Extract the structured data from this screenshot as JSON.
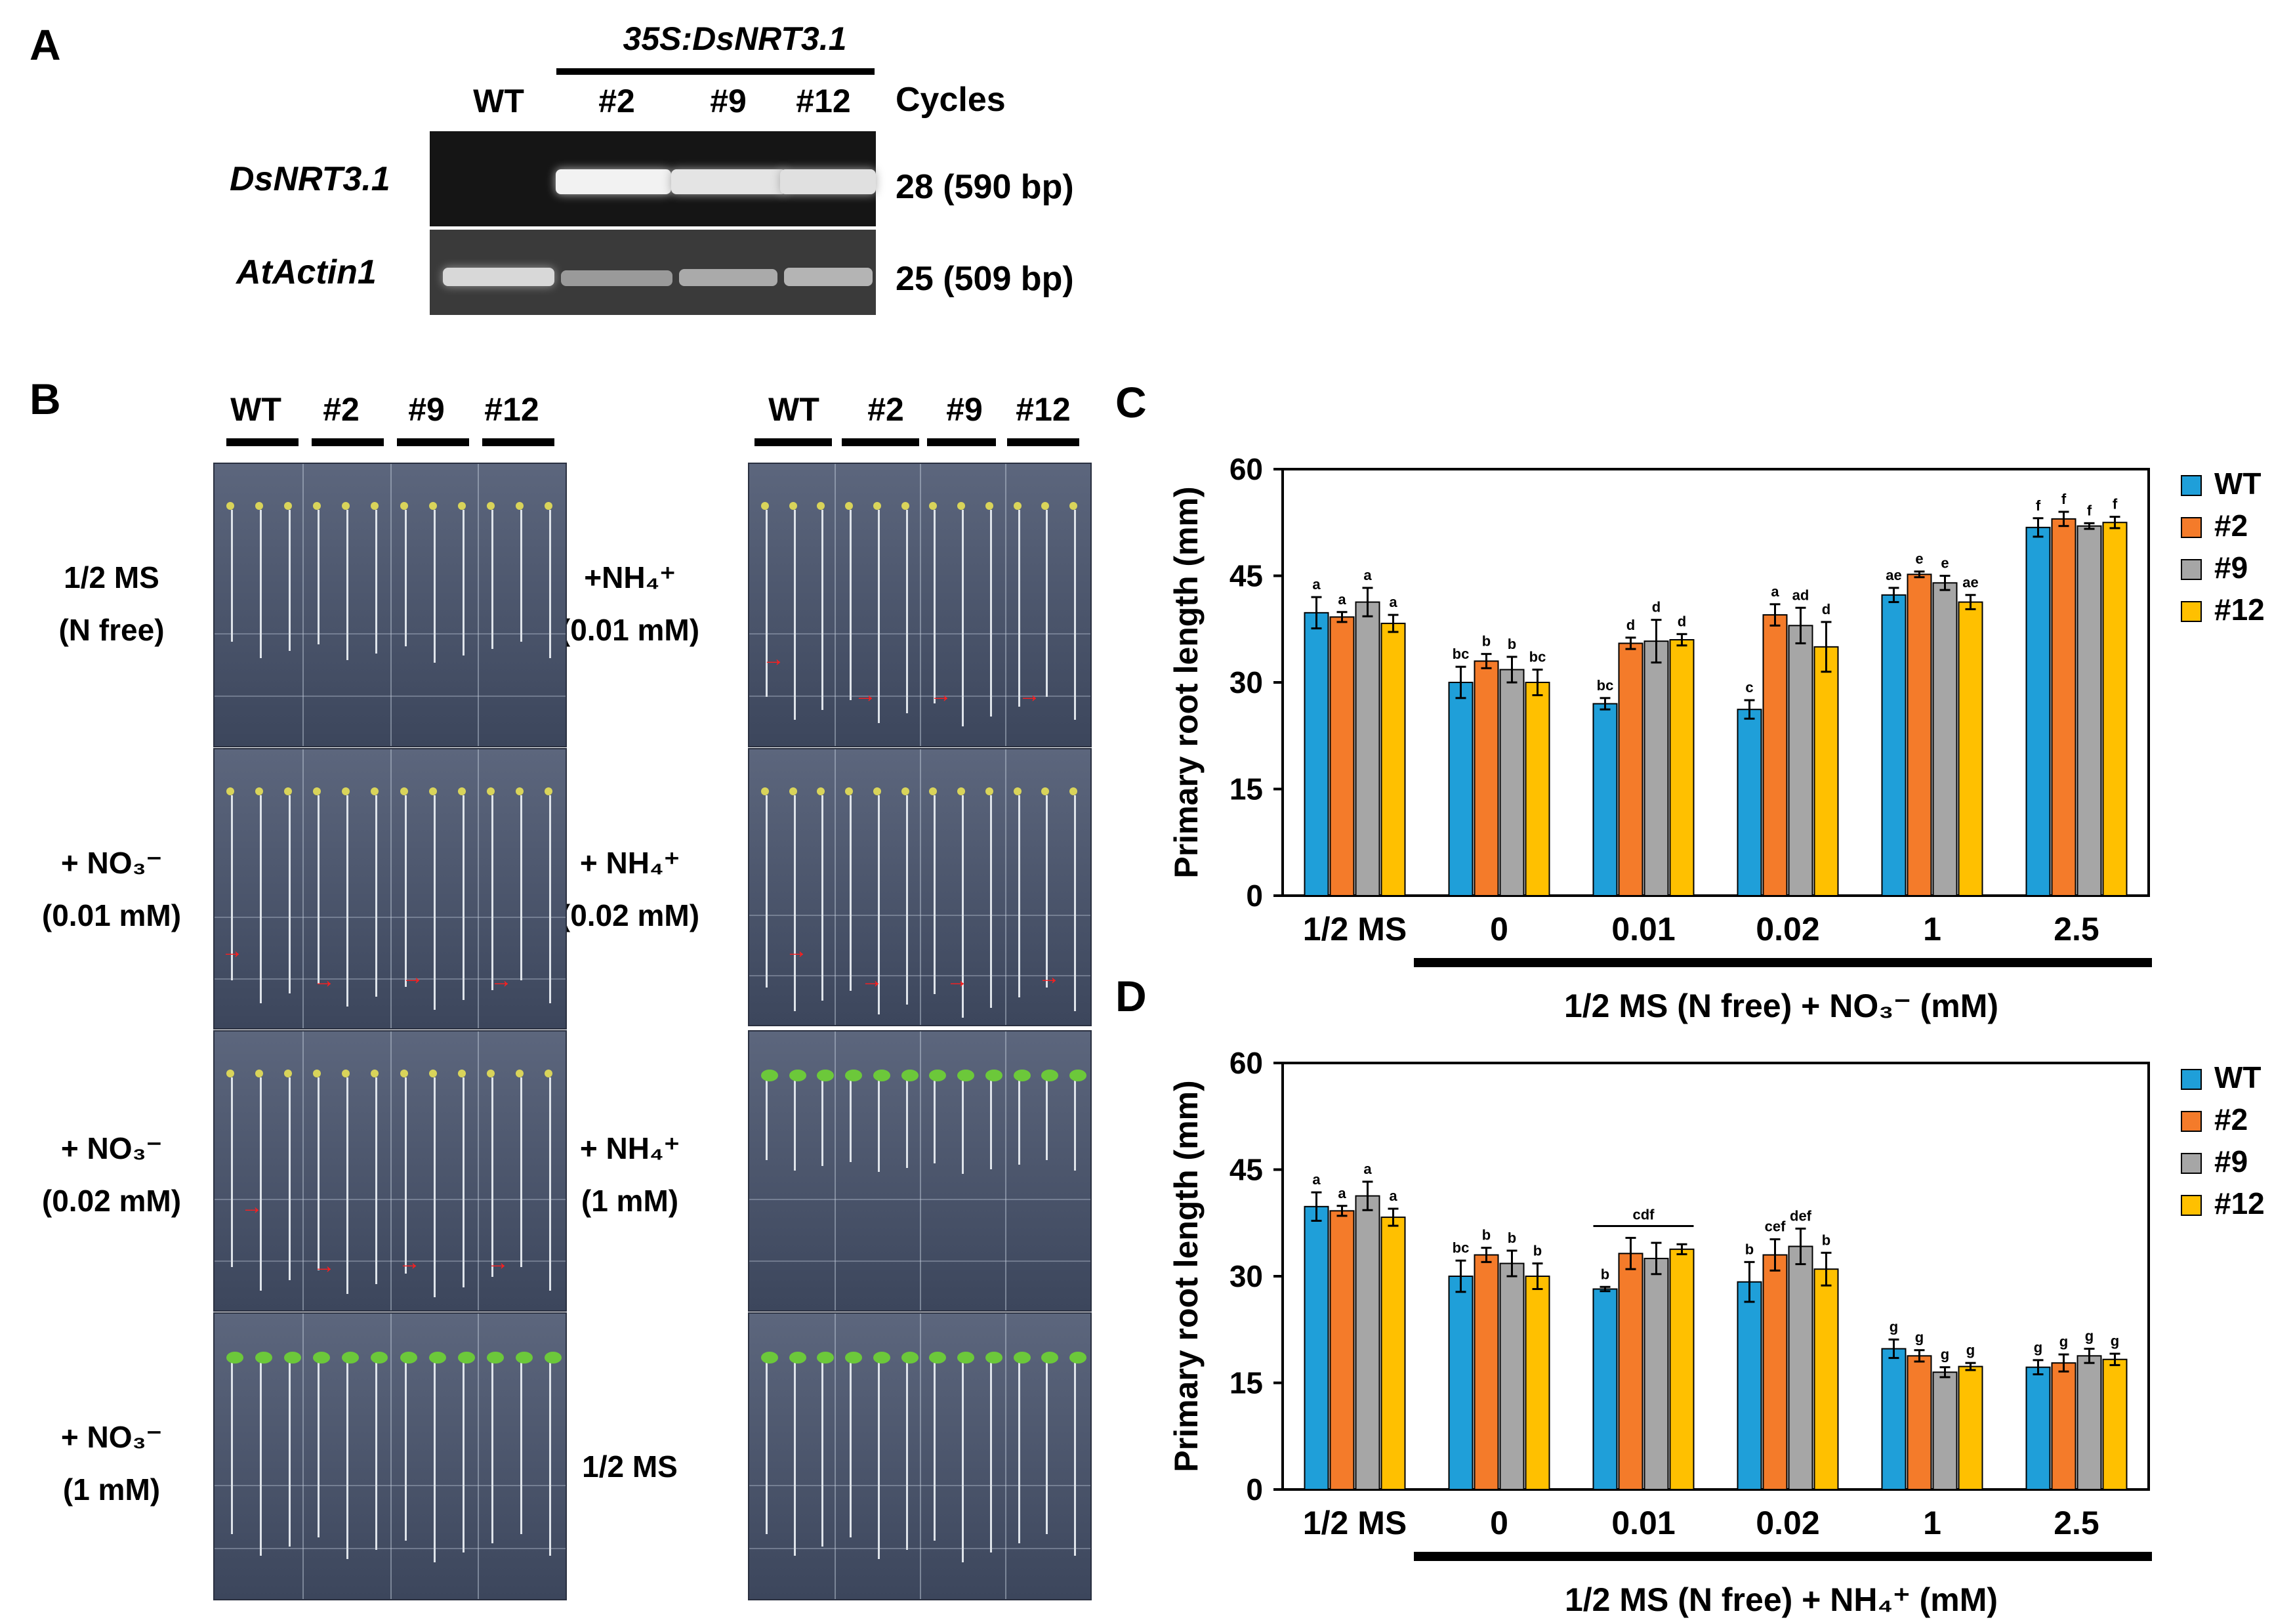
{
  "panels": {
    "a": "A",
    "b": "B",
    "c": "C",
    "d": "D"
  },
  "gel": {
    "construct": "35S:DsNRT3.1",
    "lanes": [
      "WT",
      "#2",
      "#9",
      "#12"
    ],
    "cycles_header": "Cycles",
    "rows": [
      {
        "gene": "DsNRT3.1",
        "cycles": "28 (590 bp)"
      },
      {
        "gene": "AtActin1",
        "cycles": "25 (509 bp)"
      }
    ]
  },
  "seedlings": {
    "lanes": [
      "WT",
      "#2",
      "#9",
      "#12"
    ],
    "left_conditions": [
      {
        "line1": "1/2 MS",
        "line2": "(N free)"
      },
      {
        "line1": "+ NO₃⁻",
        "line2": "(0.01 mM)"
      },
      {
        "line1": "+ NO₃⁻",
        "line2": "(0.02 mM)"
      },
      {
        "line1": "+ NO₃⁻",
        "line2": "(1 mM)"
      }
    ],
    "right_conditions": [
      {
        "line1": "+NH₄⁺",
        "line2": "(0.01 mM)"
      },
      {
        "line1": "+ NH₄⁺",
        "line2": "(0.02 mM)"
      },
      {
        "line1": "+ NH₄⁺",
        "line2": "(1 mM)"
      },
      {
        "line1": "1/2 MS",
        "line2": ""
      }
    ]
  },
  "chart_data": [
    {
      "type": "bar",
      "panel": "C",
      "ylabel": "Primary root length (mm)",
      "ylim": [
        0,
        60
      ],
      "yticks": [
        0,
        15,
        30,
        45,
        60
      ],
      "categories": [
        "1/2 MS",
        "0",
        "0.01",
        "0.02",
        "1",
        "2.5"
      ],
      "xlabel": "1/2 MS (N free) + NO₃⁻ (mM)",
      "legend": [
        "WT",
        "#2",
        "#9",
        "#12"
      ],
      "colors": [
        "#1f9fd9",
        "#f47b2a",
        "#a6a6a6",
        "#ffc000"
      ],
      "series": [
        {
          "name": "WT",
          "values": [
            39.8,
            30.0,
            27.0,
            26.2,
            42.3,
            51.8
          ],
          "errors": [
            2.2,
            2.2,
            0.8,
            1.3,
            1.0,
            1.3
          ],
          "letters": [
            "a",
            "bc",
            "bc",
            "c",
            "ae",
            "f"
          ]
        },
        {
          "name": "#2",
          "values": [
            39.2,
            33.0,
            35.5,
            39.5,
            45.2,
            53.0
          ],
          "errors": [
            0.7,
            1.0,
            0.8,
            1.5,
            0.4,
            1.0
          ],
          "letters": [
            "a",
            "b",
            "d",
            "a",
            "e",
            "f"
          ]
        },
        {
          "name": "#9",
          "values": [
            41.3,
            31.8,
            35.8,
            38.0,
            44.0,
            52.0
          ],
          "errors": [
            2.0,
            1.8,
            3.0,
            2.5,
            1.0,
            0.4
          ],
          "letters": [
            "a",
            "b",
            "d",
            "ad",
            "e",
            "f"
          ]
        },
        {
          "name": "#12",
          "values": [
            38.3,
            30.0,
            36.0,
            35.0,
            41.3,
            52.5
          ],
          "errors": [
            1.2,
            1.8,
            0.8,
            3.5,
            1.0,
            0.8
          ],
          "letters": [
            "a",
            "bc",
            "d",
            "d",
            "ae",
            "f"
          ]
        }
      ],
      "group_labels": []
    },
    {
      "type": "bar",
      "panel": "D",
      "ylabel": "Primary root length (mm)",
      "ylim": [
        0,
        60
      ],
      "yticks": [
        0,
        15,
        30,
        45,
        60
      ],
      "categories": [
        "1/2 MS",
        "0",
        "0.01",
        "0.02",
        "1",
        "2.5"
      ],
      "xlabel": "1/2 MS (N free) + NH₄⁺ (mM)",
      "legend": [
        "WT",
        "#2",
        "#9",
        "#12"
      ],
      "colors": [
        "#1f9fd9",
        "#f47b2a",
        "#a6a6a6",
        "#ffc000"
      ],
      "series": [
        {
          "name": "WT",
          "values": [
            39.8,
            30.0,
            28.2,
            29.2,
            19.8,
            17.2
          ],
          "errors": [
            2.0,
            2.2,
            0.3,
            2.8,
            1.3,
            1.0
          ],
          "letters": [
            "a",
            "bc",
            "b",
            "b",
            "g",
            "g"
          ]
        },
        {
          "name": "#2",
          "values": [
            39.2,
            33.0,
            33.2,
            33.0,
            18.8,
            17.8
          ],
          "errors": [
            0.7,
            1.0,
            2.2,
            2.2,
            0.8,
            1.2
          ],
          "letters": [
            "a",
            "b",
            "",
            "cef",
            "g",
            "g"
          ]
        },
        {
          "name": "#9",
          "values": [
            41.3,
            31.8,
            32.5,
            34.2,
            16.5,
            18.8
          ],
          "errors": [
            2.0,
            1.8,
            2.2,
            2.5,
            0.7,
            1.0
          ],
          "letters": [
            "a",
            "b",
            "",
            "def",
            "g",
            "g"
          ]
        },
        {
          "name": "#12",
          "values": [
            38.3,
            30.0,
            33.8,
            31.0,
            17.3,
            18.3
          ],
          "errors": [
            1.2,
            1.8,
            0.7,
            2.3,
            0.5,
            0.8
          ],
          "letters": [
            "a",
            "b",
            "",
            "b",
            "g",
            "g"
          ]
        }
      ],
      "group_labels": [
        {
          "category": "0.01",
          "text": "cdf"
        }
      ]
    }
  ]
}
